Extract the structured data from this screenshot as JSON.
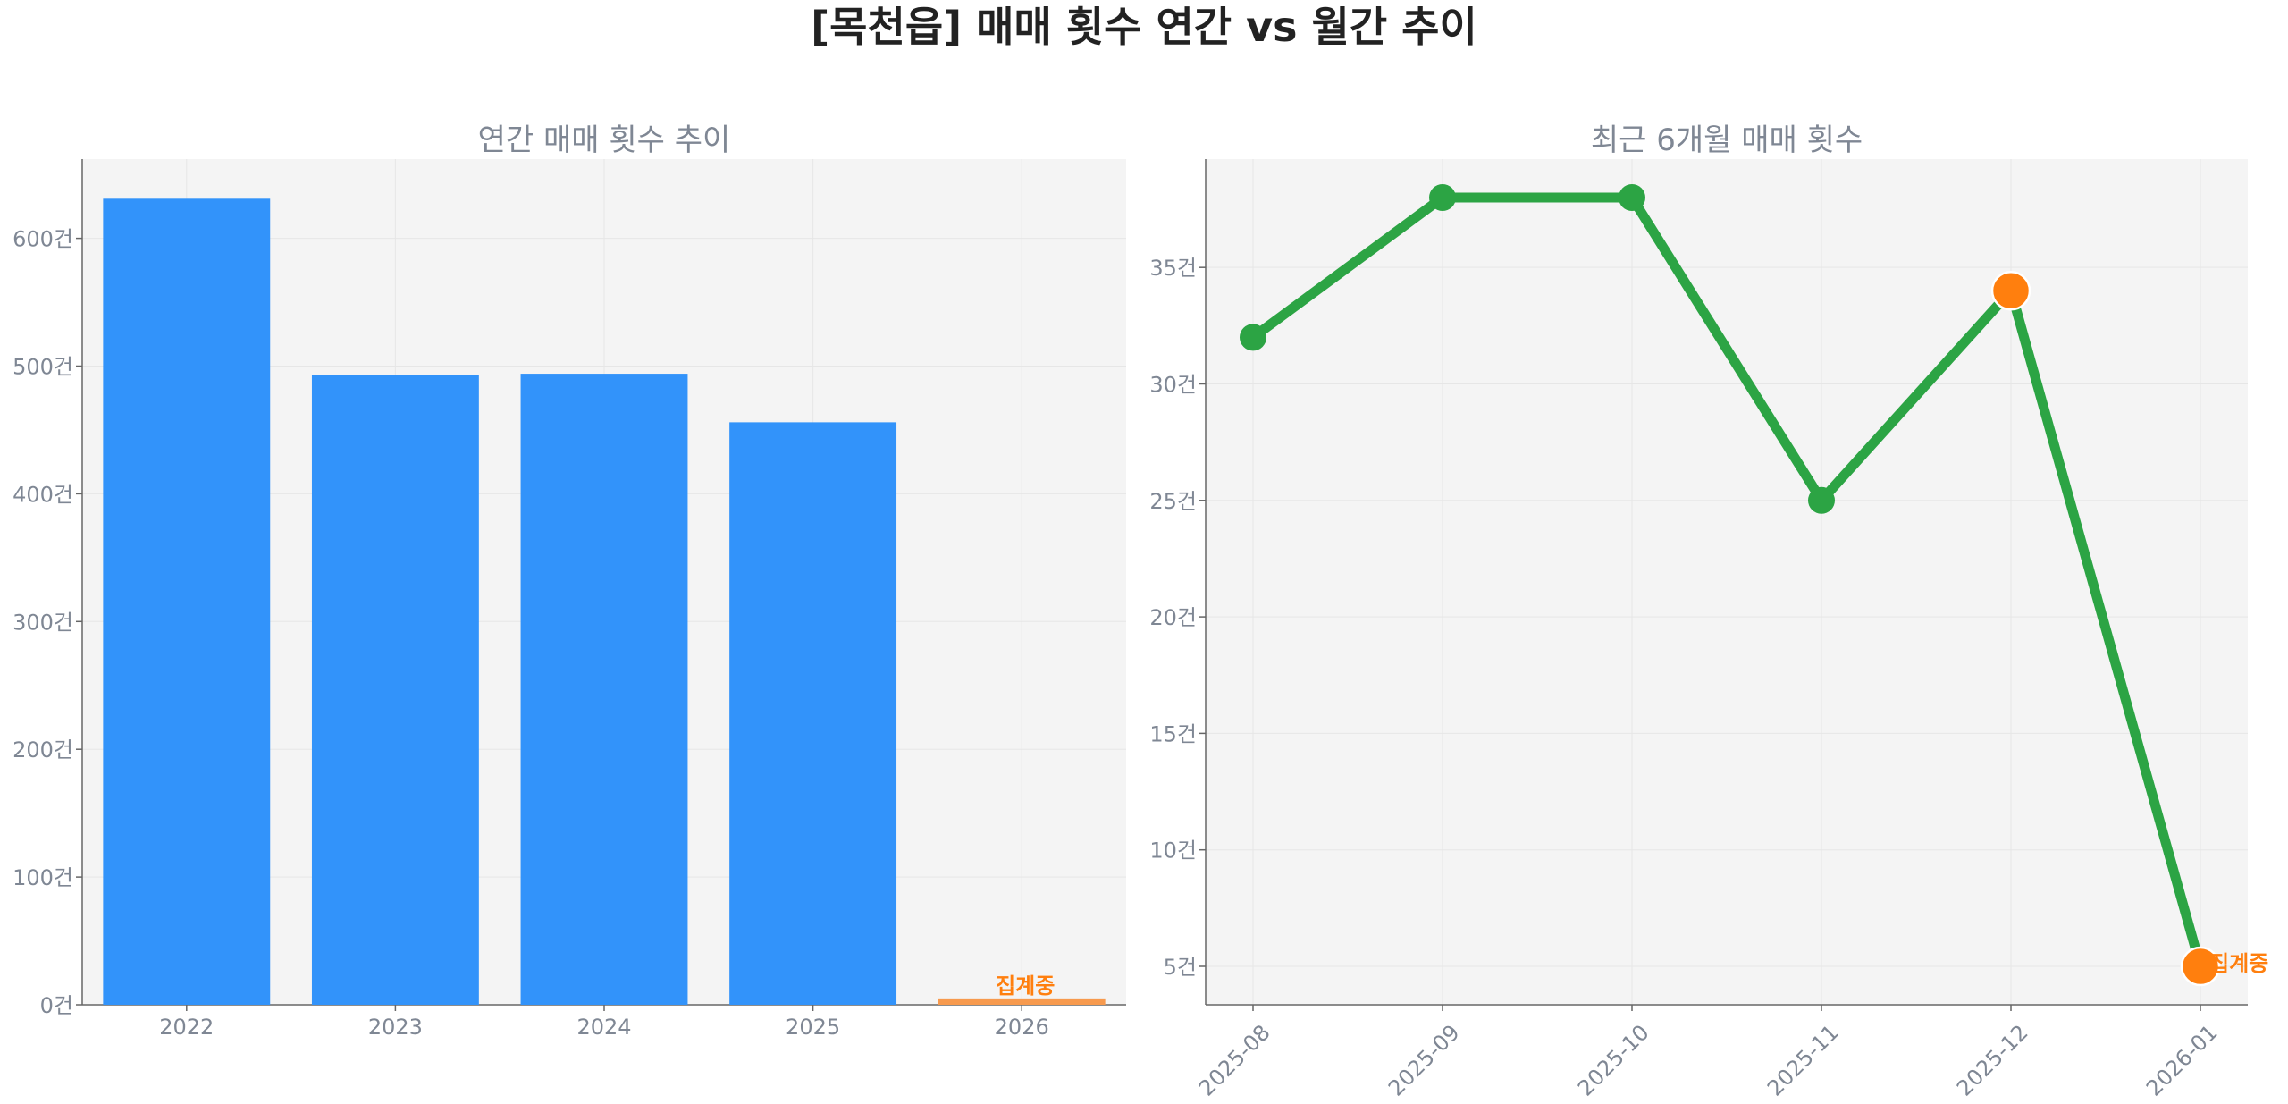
{
  "figure": {
    "title": "[목천읍] 매매 횟수 연간 vs 월간 추이"
  },
  "colors": {
    "bar": "#3293fa",
    "bar_partial": "#f79a4e",
    "line": "#2ca444",
    "marker": "#2ca444",
    "highlight": "#ff7f0e",
    "panel_bg": "#f4f4f4",
    "axis": "#7f8794",
    "grid": "#e6e6e6"
  },
  "chart_data": [
    {
      "type": "bar",
      "title": "연간 매매 횟수 추이",
      "categories": [
        "2022",
        "2023",
        "2024",
        "2025",
        "2026"
      ],
      "values": [
        631,
        493,
        494,
        456,
        5
      ],
      "ylim": [
        0,
        662
      ],
      "yticks": [
        0,
        100,
        200,
        300,
        400,
        500,
        600
      ],
      "tick_suffix": "건",
      "annotation": {
        "category": "2026",
        "text": "집계중"
      },
      "grid": true
    },
    {
      "type": "line",
      "title": "최근 6개월 매매 횟수",
      "categories": [
        "2025-08",
        "2025-09",
        "2025-10",
        "2025-11",
        "2025-12",
        "2026-01"
      ],
      "values": [
        32,
        38,
        38,
        25,
        34,
        5
      ],
      "highlight_categories": [
        "2025-12",
        "2026-01"
      ],
      "ylim": [
        3.35,
        39.65
      ],
      "yticks": [
        5,
        10,
        15,
        20,
        25,
        30,
        35
      ],
      "tick_suffix": "건",
      "annotation": {
        "category": "2026-01",
        "text": "집계중"
      },
      "grid": true
    }
  ]
}
